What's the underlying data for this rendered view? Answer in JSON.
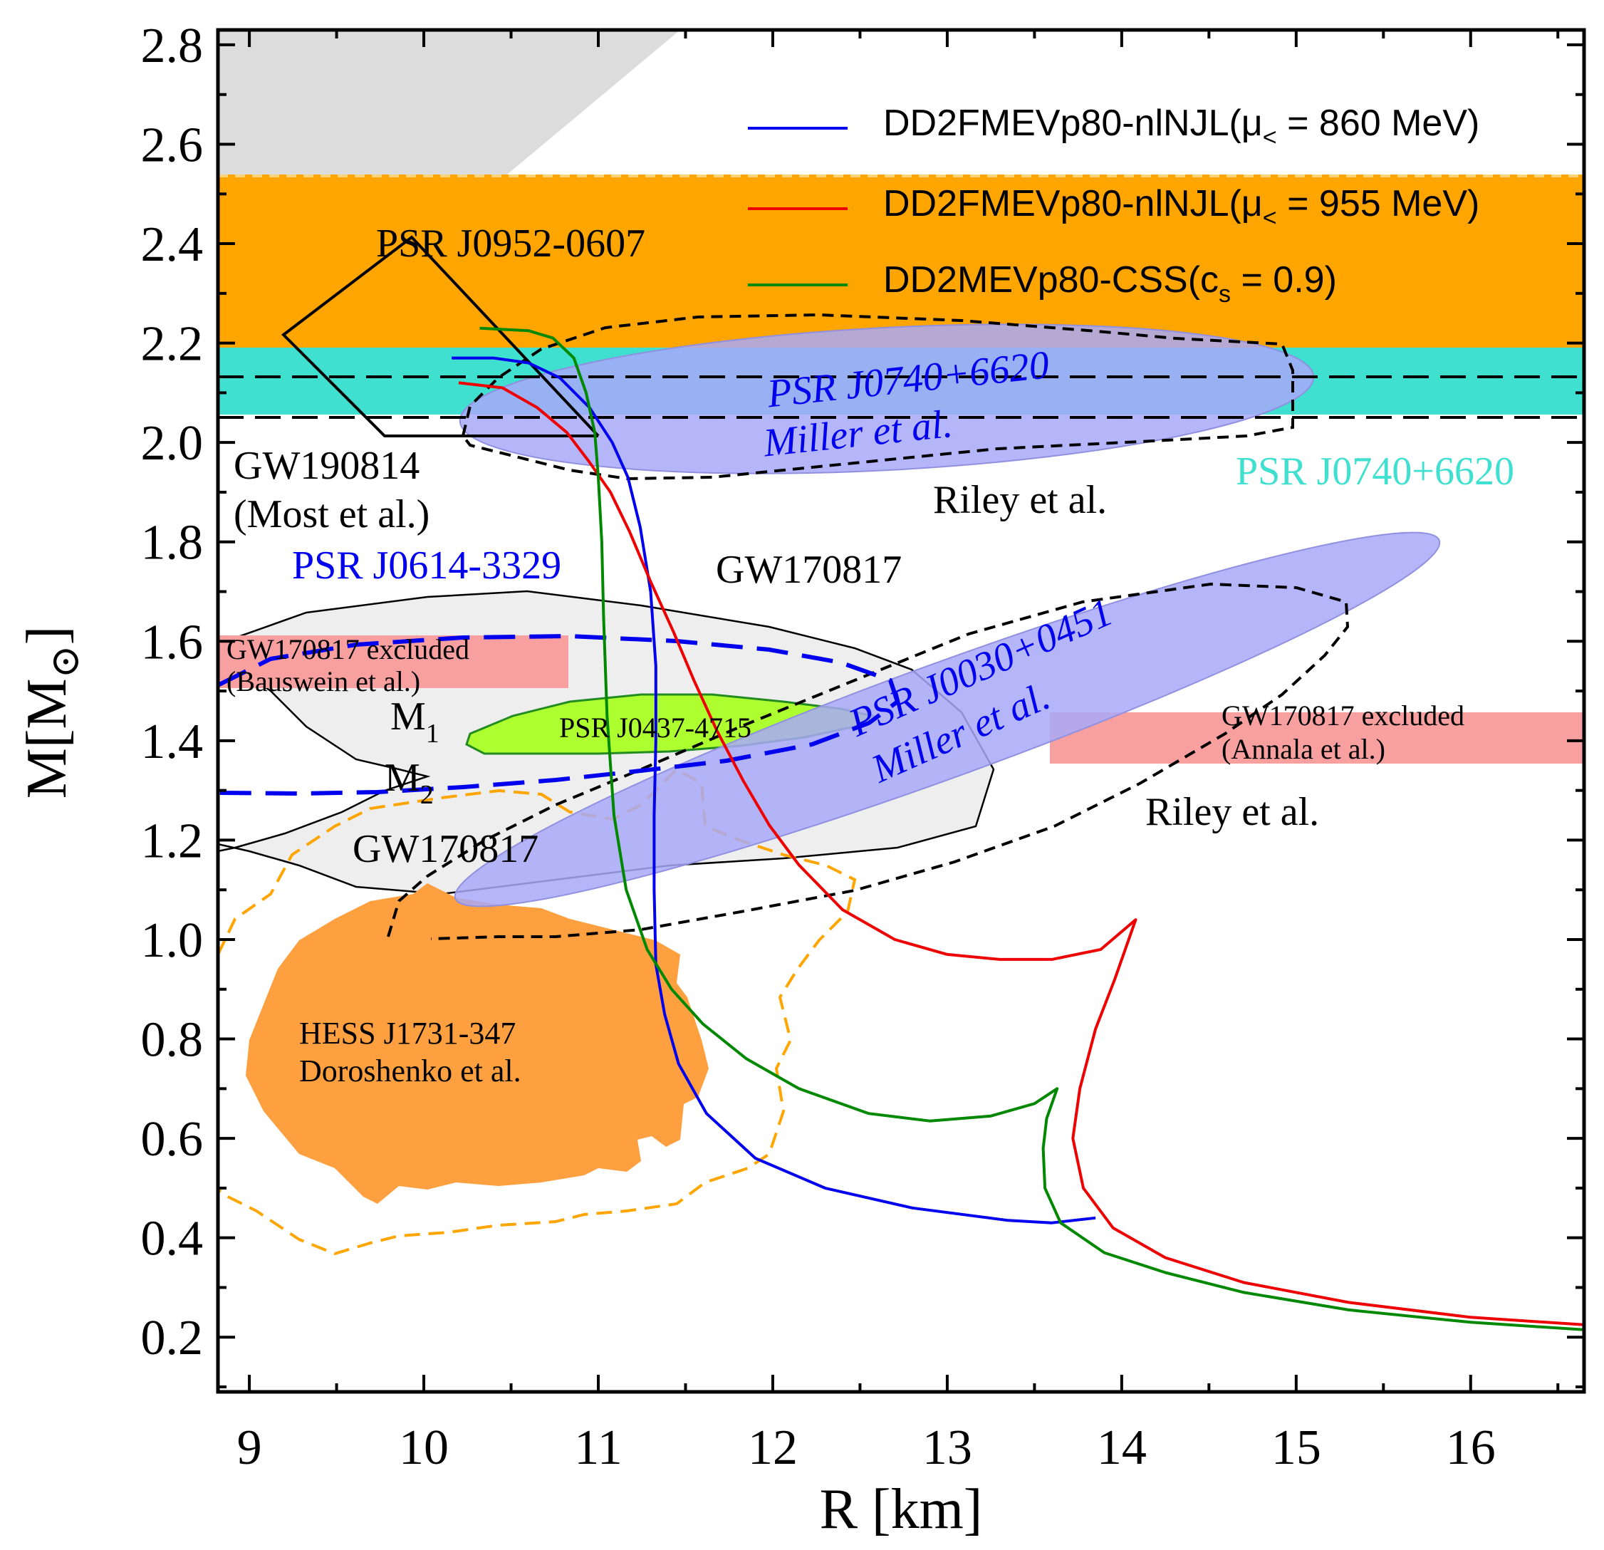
{
  "chart_data": {
    "type": "line",
    "title": "",
    "xlabel": "R [km]",
    "ylabel": "M[M",
    "ylabel_sub": "⊙",
    "ylabel_close": "]",
    "xlim": [
      8.82,
      16.65
    ],
    "ylim": [
      0.09,
      2.83
    ],
    "x_ticks": [
      9,
      10,
      11,
      12,
      13,
      14,
      15,
      16
    ],
    "x_tick_labels": [
      "9",
      "10",
      "11",
      "12",
      "13",
      "14",
      "15",
      "16"
    ],
    "y_ticks": [
      0.2,
      0.4,
      0.6,
      0.8,
      1.0,
      1.2,
      1.4,
      1.6,
      1.8,
      2.0,
      2.2,
      2.4,
      2.6,
      2.8
    ],
    "y_tick_labels": [
      "0.2",
      "0.4",
      "0.6",
      "0.8",
      "1.0",
      "1.2",
      "1.4",
      "1.6",
      "1.8",
      "2.0",
      "2.2",
      "2.4",
      "2.6",
      "2.8"
    ],
    "legend": {
      "position": "top-right",
      "entries": [
        {
          "main": "DD2FMEVp80-nlNJL(μ",
          "sub": "<",
          "rest": " = 860 MeV)",
          "color": "#0000ee"
        },
        {
          "main": "DD2FMEVp80-nlNJL(μ",
          "sub": "<",
          "rest": " = 955 MeV)",
          "color": "#ee0000"
        },
        {
          "main": "DD2MEVp80-CSS(c",
          "sub": "s",
          "rest": " = 0.9)",
          "color": "#008800"
        }
      ]
    },
    "series": [
      {
        "name": "DD2FMEVp80-nlNJL(μ< = 860 MeV)",
        "color": "#0000ee",
        "points": [
          [
            13.85,
            0.44
          ],
          [
            13.6,
            0.43
          ],
          [
            13.35,
            0.435
          ],
          [
            12.8,
            0.46
          ],
          [
            12.3,
            0.5
          ],
          [
            11.9,
            0.56
          ],
          [
            11.62,
            0.65
          ],
          [
            11.46,
            0.75
          ],
          [
            11.38,
            0.85
          ],
          [
            11.33,
            0.95
          ],
          [
            11.32,
            1.1
          ],
          [
            11.32,
            1.25
          ],
          [
            11.33,
            1.4
          ],
          [
            11.33,
            1.55
          ],
          [
            11.3,
            1.7
          ],
          [
            11.24,
            1.83
          ],
          [
            11.17,
            1.93
          ],
          [
            11.08,
            2.0
          ],
          [
            10.95,
            2.07
          ],
          [
            10.78,
            2.13
          ],
          [
            10.6,
            2.16
          ],
          [
            10.4,
            2.17
          ],
          [
            10.16,
            2.17
          ]
        ]
      },
      {
        "name": "DD2FMEVp80-nlNJL(μ< = 955 MeV)",
        "color": "#ee0000",
        "points": [
          [
            16.65,
            0.225
          ],
          [
            16.0,
            0.24
          ],
          [
            15.3,
            0.27
          ],
          [
            14.7,
            0.31
          ],
          [
            14.25,
            0.36
          ],
          [
            13.95,
            0.42
          ],
          [
            13.78,
            0.5
          ],
          [
            13.72,
            0.6
          ],
          [
            13.76,
            0.7
          ],
          [
            13.85,
            0.82
          ],
          [
            13.96,
            0.92
          ],
          [
            14.08,
            1.04
          ],
          [
            13.88,
            0.98
          ],
          [
            13.6,
            0.96
          ],
          [
            13.3,
            0.96
          ],
          [
            13.0,
            0.97
          ],
          [
            12.7,
            1.0
          ],
          [
            12.4,
            1.06
          ],
          [
            12.15,
            1.15
          ],
          [
            11.98,
            1.23
          ],
          [
            11.83,
            1.32
          ],
          [
            11.68,
            1.42
          ],
          [
            11.55,
            1.52
          ],
          [
            11.43,
            1.62
          ],
          [
            11.3,
            1.72
          ],
          [
            11.18,
            1.82
          ],
          [
            11.07,
            1.9
          ],
          [
            10.95,
            1.96
          ],
          [
            10.82,
            2.02
          ],
          [
            10.65,
            2.07
          ],
          [
            10.45,
            2.11
          ],
          [
            10.2,
            2.12
          ]
        ]
      },
      {
        "name": "DD2MEVp80-CSS(cs = 0.9)",
        "color": "#008800",
        "points": [
          [
            16.65,
            0.215
          ],
          [
            16.0,
            0.23
          ],
          [
            15.3,
            0.255
          ],
          [
            14.7,
            0.29
          ],
          [
            14.25,
            0.33
          ],
          [
            13.9,
            0.37
          ],
          [
            13.65,
            0.43
          ],
          [
            13.56,
            0.5
          ],
          [
            13.55,
            0.58
          ],
          [
            13.57,
            0.64
          ],
          [
            13.63,
            0.7
          ],
          [
            13.5,
            0.67
          ],
          [
            13.25,
            0.645
          ],
          [
            12.9,
            0.635
          ],
          [
            12.55,
            0.65
          ],
          [
            12.15,
            0.7
          ],
          [
            11.85,
            0.76
          ],
          [
            11.6,
            0.83
          ],
          [
            11.42,
            0.9
          ],
          [
            11.28,
            0.98
          ],
          [
            11.16,
            1.1
          ],
          [
            11.09,
            1.25
          ],
          [
            11.05,
            1.45
          ],
          [
            11.03,
            1.65
          ],
          [
            11.02,
            1.8
          ],
          [
            11.0,
            1.93
          ],
          [
            10.98,
            2.02
          ],
          [
            10.93,
            2.1
          ],
          [
            10.86,
            2.17
          ],
          [
            10.74,
            2.21
          ],
          [
            10.6,
            2.225
          ],
          [
            10.32,
            2.23
          ]
        ]
      }
    ],
    "regions": [
      {
        "name": "PSR J0952-0607",
        "label": "PSR J0952-0607",
        "color": "#ffa500",
        "y_range": [
          2.18,
          2.52
        ]
      },
      {
        "name": "PSR J0740+6620 (cyan band)",
        "label": "PSR J0740+6620",
        "color": "#40e0d0",
        "y_range": [
          2.04,
          2.18
        ]
      },
      {
        "name": "GW170817 excluded (Bauswein et al.)",
        "label": "GW170817 excluded",
        "label2": "(Bauswein et al.)",
        "color": "#f8a0a0",
        "x_range": [
          8.82,
          10.85
        ],
        "y_range": [
          1.5,
          1.6
        ]
      },
      {
        "name": "GW170817 excluded (Annala et al.)",
        "label": "GW170817 excluded",
        "label2": "(Annala et al.)",
        "color": "#f8a0a0",
        "x_range": [
          13.6,
          16.65
        ],
        "y_range": [
          1.35,
          1.45
        ]
      },
      {
        "name": "HESS J1731-347",
        "label": "HESS J1731-347",
        "label2": "Doroshenko et al.",
        "color": "#ffa040"
      },
      {
        "name": "PSR J0437-4715",
        "label": "PSR J0437-4715",
        "color": "#adff2f"
      }
    ],
    "annotations": {
      "gw190814": [
        "GW190814",
        "(Most et al.)"
      ],
      "psr_j0614": "PSR J0614-3329",
      "gw170817_top": "GW170817",
      "gw170817_bottom": "GW170817",
      "m1": "M",
      "m1_sub": "1",
      "m2": "M",
      "m2_sub": "2",
      "j0740_miller": [
        "PSR J0740+6620",
        "Miller et al."
      ],
      "j0740_riley": "Riley et al.",
      "j0740_cyan": "PSR J0740+6620",
      "j0030_miller": [
        "PSR J0030+0451",
        "Miller et al."
      ],
      "j0030_riley": "Riley et al.",
      "lines_hline_dashed": [
        2.12,
        2.04
      ]
    }
  }
}
